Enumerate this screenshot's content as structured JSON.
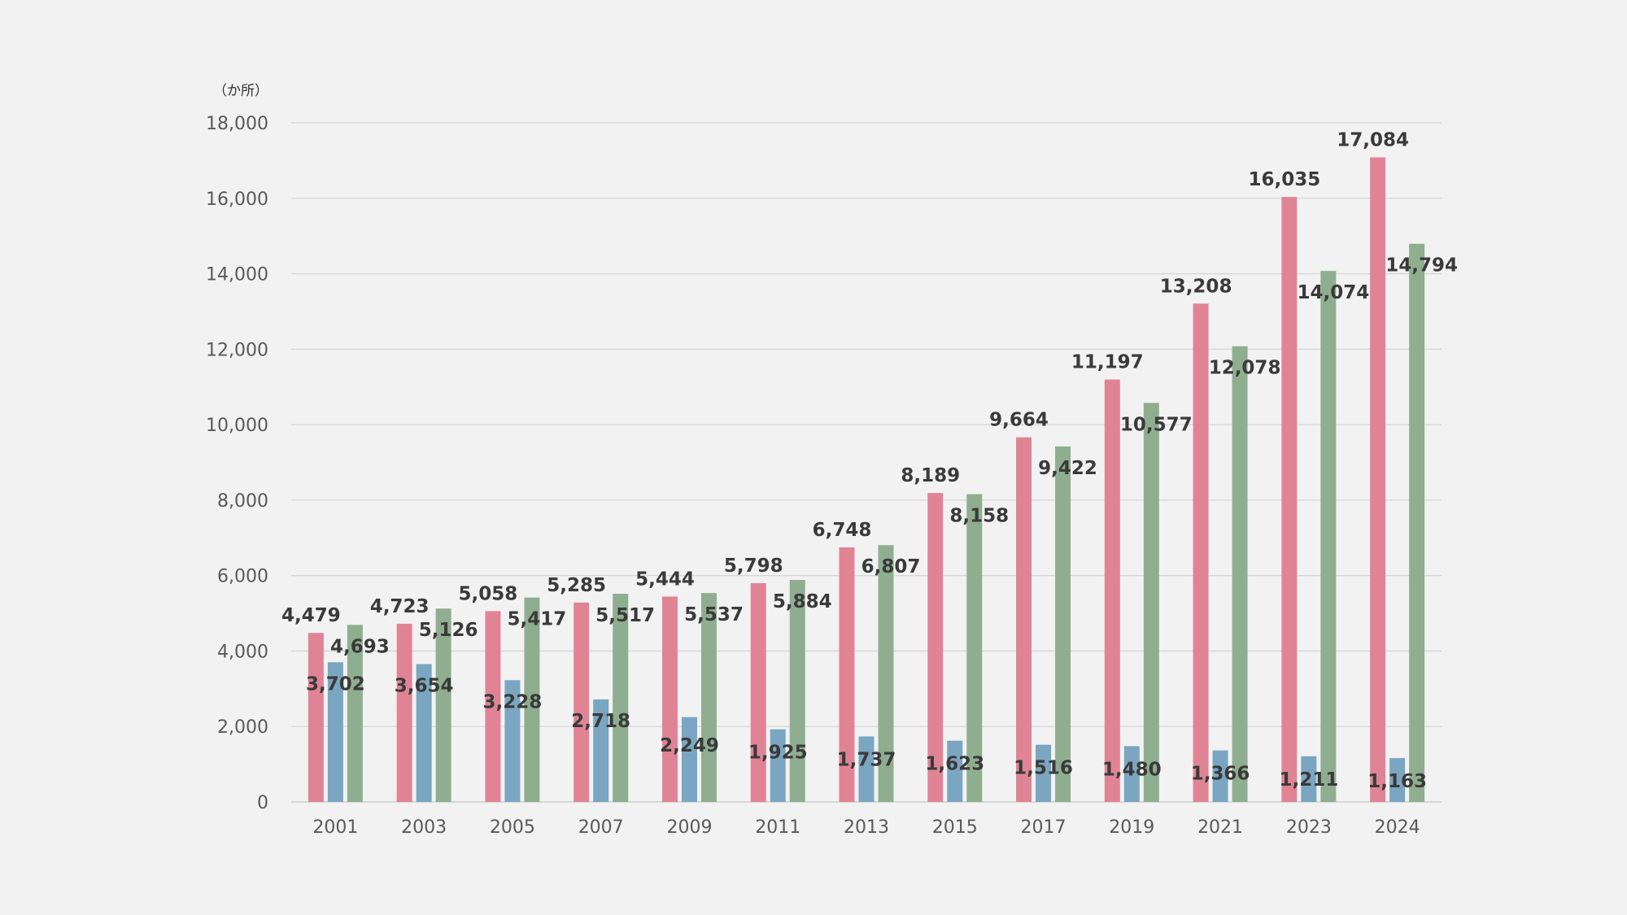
{
  "chart_data": {
    "type": "bar",
    "unit_label": "（か所）",
    "categories": [
      "2001",
      "2003",
      "2005",
      "2007",
      "2009",
      "2011",
      "2013",
      "2015",
      "2017",
      "2019",
      "2021",
      "2023",
      "2024"
    ],
    "series": [
      {
        "color": "#e08495",
        "values": [
          4479,
          4723,
          5058,
          5285,
          5444,
          5798,
          6748,
          8189,
          9664,
          11197,
          13208,
          16035,
          17084
        ]
      },
      {
        "color": "#7aa6c2",
        "values": [
          3702,
          3654,
          3228,
          2718,
          2249,
          1925,
          1737,
          1623,
          1516,
          1480,
          1366,
          1211,
          1163
        ]
      },
      {
        "color": "#8fae90",
        "values": [
          4693,
          5126,
          5417,
          5517,
          5537,
          5884,
          6807,
          8158,
          9422,
          10577,
          12078,
          14074,
          14794
        ]
      }
    ],
    "y_ticks": [
      "0",
      "2,000",
      "4,000",
      "6,000",
      "8,000",
      "10,000",
      "12,000",
      "14,000",
      "16,000",
      "18,000"
    ],
    "ylim": [
      0,
      18000
    ],
    "grid": true,
    "legend": "none"
  }
}
